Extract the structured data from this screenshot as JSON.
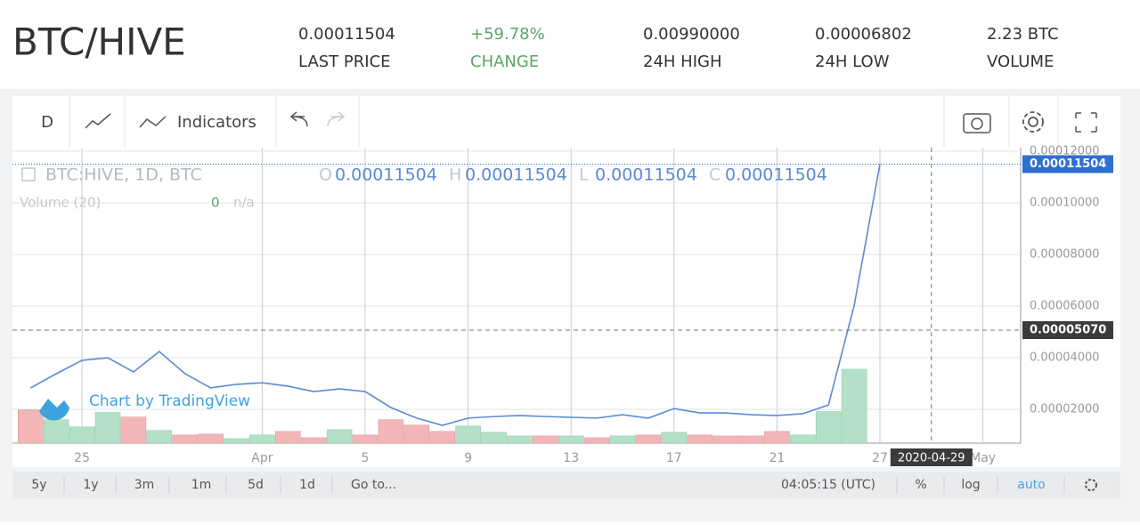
{
  "header": {
    "pair": "BTC/HIVE",
    "stats": [
      {
        "value": "0.00011504",
        "label": "LAST PRICE"
      },
      {
        "value": "+59.78%",
        "label": "CHANGE"
      },
      {
        "value": "0.00990000",
        "label": "24H HIGH"
      },
      {
        "value": "0.00006802",
        "label": "24H LOW"
      },
      {
        "value": "2.23 BTC",
        "label": "VOLUME"
      }
    ]
  },
  "toolbar": {
    "interval": "D",
    "indicators": "Indicators"
  },
  "chart_data": {
    "type": "line",
    "legend": {
      "symbol": "BTC:HIVE, 1D, BTC",
      "ohlc": [
        {
          "key": "O",
          "value": "0.00011504"
        },
        {
          "key": "H",
          "value": "0.00011504"
        },
        {
          "key": "L",
          "value": "0.00011504"
        },
        {
          "key": "C",
          "value": "0.00011504"
        }
      ]
    },
    "volume_legend": {
      "name": "Volume (20)",
      "value": "0",
      "extra": "n/a"
    },
    "watermark": "Chart by TradingView",
    "categories": [
      null,
      null,
      "25",
      null,
      null,
      null,
      null,
      null,
      null,
      "Apr",
      null,
      null,
      null,
      "5",
      null,
      null,
      null,
      "9",
      null,
      null,
      null,
      "13",
      null,
      null,
      null,
      "17",
      null,
      null,
      null,
      "21",
      null,
      null,
      null,
      "27",
      null,
      null,
      null,
      "May",
      null
    ],
    "series": [
      {
        "color": "#5b8ad6",
        "values": [
          2.83e-05,
          3.38e-05,
          3.9e-05,
          4e-05,
          3.45e-05,
          4.24e-05,
          3.38e-05,
          2.83e-05,
          2.97e-05,
          3.03e-05,
          2.9e-05,
          2.69e-05,
          2.79e-05,
          2.69e-05,
          2.07e-05,
          1.66e-05,
          1.38e-05,
          1.66e-05,
          1.72e-05,
          1.76e-05,
          1.72e-05,
          1.69e-05,
          1.66e-05,
          1.79e-05,
          1.66e-05,
          2.03e-05,
          1.86e-05,
          1.86e-05,
          1.79e-05,
          1.76e-05,
          1.83e-05,
          2.17e-05,
          6.03e-05,
          0.00011504,
          null,
          null,
          null,
          null,
          null
        ]
      }
    ],
    "volume": {
      "values": [
        37,
        26,
        18,
        34,
        29,
        14,
        9,
        10,
        5,
        9,
        13,
        6,
        15,
        9,
        26,
        20,
        13,
        19,
        12,
        8,
        8,
        8,
        6,
        8,
        9,
        12,
        9,
        8,
        8,
        13,
        9,
        35,
        82,
        null,
        null,
        null,
        null,
        null,
        null
      ],
      "colors": [
        "#f2b6b8",
        "#b4e0c7",
        "#b4e0c7",
        "#b4e0c7",
        "#f2b6b8",
        "#b4e0c7",
        "#f2b6b8",
        "#f2b6b8",
        "#b4e0c7",
        "#b4e0c7",
        "#f2b6b8",
        "#f2b6b8",
        "#b4e0c7",
        "#f2b6b8",
        "#f2b6b8",
        "#f2b6b8",
        "#f2b6b8",
        "#b4e0c7",
        "#b4e0c7",
        "#b4e0c7",
        "#f2b6b8",
        "#b4e0c7",
        "#f2b6b8",
        "#b4e0c7",
        "#f2b6b8",
        "#b4e0c7",
        "#f2b6b8",
        "#f2b6b8",
        "#f2b6b8",
        "#f2b6b8",
        "#b4e0c7",
        "#b4e0c7",
        "#b4e0c7",
        null,
        null,
        null,
        null,
        null,
        null
      ]
    },
    "ylim": [
      6.9e-06,
      0.0001214
    ],
    "yticks": [
      {
        "value": 2e-05,
        "label": "0.00002000"
      },
      {
        "value": 4e-05,
        "label": "0.00004000"
      },
      {
        "value": 6e-05,
        "label": "0.00006000"
      },
      {
        "value": 8e-05,
        "label": "0.00008000"
      },
      {
        "value": 0.0001,
        "label": "0.00010000"
      },
      {
        "value": 0.00012,
        "label": "0.00012000"
      }
    ],
    "grid": true,
    "last_price": 0.00011504,
    "crosshair": {
      "price": {
        "value": 5.07e-05,
        "label": "0.00005070"
      },
      "date": "2020-04-29"
    }
  },
  "bottom": {
    "ranges": [
      "5y",
      "1y",
      "3m",
      "1m",
      "5d",
      "1d"
    ],
    "goto": "Go to...",
    "time": "04:05:15 (UTC)",
    "percent": "%",
    "log": "log",
    "auto": "auto"
  }
}
